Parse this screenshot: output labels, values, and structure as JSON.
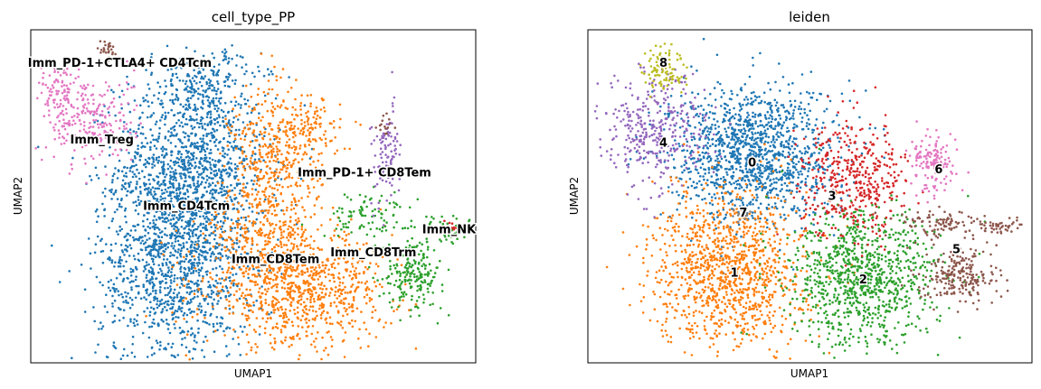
{
  "chart_data": [
    {
      "type": "scatter",
      "title": "cell_type_PP",
      "xlabel": "UMAP1",
      "ylabel": "UMAP2",
      "xlim": [
        0,
        100
      ],
      "ylim": [
        0,
        100
      ],
      "grid": false,
      "legend": "on data",
      "clusters": [
        {
          "name": "Imm_CD4Tcm",
          "color": "#1f77b4",
          "blobs": [
            [
              36,
              58,
              10,
              17,
              1300
            ],
            [
              32,
              28,
              10,
              18,
              1100
            ],
            [
              40,
              85,
              7,
              5,
              150
            ]
          ],
          "label_at": [
            35,
            47
          ]
        },
        {
          "name": "Imm_CD8Tem",
          "color": "#ff7f0e",
          "blobs": [
            [
              60,
              22,
              12,
              10,
              900
            ],
            [
              55,
              60,
              6,
              14,
              450
            ],
            [
              63,
              70,
              4,
              5,
              100
            ],
            [
              51,
              38,
              7,
              8,
              200
            ]
          ],
          "label_at": [
            55,
            31
          ]
        },
        {
          "name": "Imm_CD8Trm",
          "color": "#2ca02c",
          "blobs": [
            [
              86,
              27,
              4,
              6,
              200
            ],
            [
              76,
              44,
              6,
              4,
              100
            ],
            [
              93,
              40,
              3,
              3,
              40
            ]
          ],
          "label_at": [
            77,
            33
          ]
        },
        {
          "name": "Imm_PD-1+ CD8Tem",
          "color": "#9467bd",
          "blobs": [
            [
              80,
              62,
              2,
              9,
              100
            ]
          ],
          "label_at": [
            75,
            57
          ]
        },
        {
          "name": "Imm_NK",
          "color": "#d62728",
          "blobs": [
            [
              95,
              41,
              1.5,
              1,
              10
            ]
          ],
          "label_at": [
            94,
            40
          ]
        },
        {
          "name": "Imm_Treg",
          "color": "#e377c2",
          "blobs": [
            [
              13,
              73,
              6,
              8,
              250
            ],
            [
              7,
              82,
              3,
              5,
              80
            ]
          ],
          "label_at": [
            16,
            67
          ]
        },
        {
          "name": "Imm_PD-1+CTLA4+ CD4Tcm",
          "color": "#8c564b",
          "blobs": [
            [
              17,
              94,
              1.2,
              2,
              25
            ],
            [
              80,
              71,
              1,
              2,
              15
            ]
          ],
          "label_at": [
            20,
            90
          ]
        }
      ]
    },
    {
      "type": "scatter",
      "title": "leiden",
      "xlabel": "UMAP1",
      "ylabel": "UMAP2",
      "xlim": [
        0,
        100
      ],
      "ylim": [
        0,
        100
      ],
      "grid": false,
      "legend": "on data",
      "clusters": [
        {
          "name": "0",
          "color": "#1f77b4",
          "blobs": [
            [
              37,
              63,
              11,
              12,
              1300
            ]
          ],
          "label_at": [
            37,
            60
          ]
        },
        {
          "name": "1",
          "color": "#ff7f0e",
          "blobs": [
            [
              32,
              28,
              10,
              14,
              1150
            ]
          ],
          "label_at": [
            33,
            27
          ]
        },
        {
          "name": "2",
          "color": "#2ca02c",
          "blobs": [
            [
              62,
              25,
              10,
              12,
              950
            ]
          ],
          "label_at": [
            62,
            25
          ]
        },
        {
          "name": "3",
          "color": "#d62728",
          "blobs": [
            [
              60,
              55,
              7,
              10,
              450
            ]
          ],
          "label_at": [
            55,
            50
          ]
        },
        {
          "name": "4",
          "color": "#9467bd",
          "blobs": [
            [
              15,
              70,
              7,
              10,
              350
            ]
          ],
          "label_at": [
            17,
            66
          ]
        },
        {
          "name": "5",
          "color": "#8c564b",
          "blobs": [
            [
              84,
              26,
              5,
              5,
              220
            ],
            [
              80,
              42,
              6,
              2.5,
              100
            ],
            [
              93,
              41,
              3,
              1.2,
              40
            ]
          ],
          "label_at": [
            83,
            34
          ]
        },
        {
          "name": "6",
          "color": "#e377c2",
          "blobs": [
            [
              78,
              60,
              3,
              5,
              150
            ]
          ],
          "label_at": [
            79,
            58
          ]
        },
        {
          "name": "7",
          "color": "#7f7f7f",
          "blobs": [
            [
              35,
              45,
              1.5,
              1.5,
              12
            ]
          ],
          "label_at": [
            35,
            45
          ]
        },
        {
          "name": "8",
          "color": "#bcbd22",
          "blobs": [
            [
              17,
              88,
              2.5,
              4,
              100
            ]
          ],
          "label_at": [
            17,
            90
          ]
        }
      ]
    }
  ]
}
